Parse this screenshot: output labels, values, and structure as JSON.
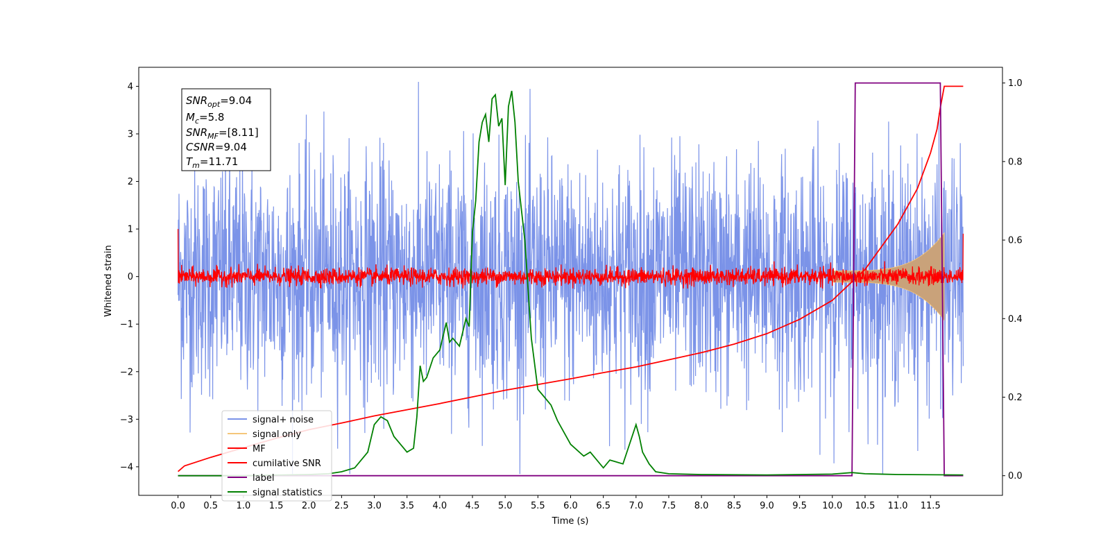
{
  "chart_data": {
    "type": "line",
    "xlabel": "Time (s)",
    "ylabel": "Whitened strain",
    "xlim": [
      -0.6,
      12.6
    ],
    "ylim": [
      -4.6,
      4.4
    ],
    "y2lim": [
      -0.05,
      1.04
    ],
    "xticks": [
      "0.0",
      "0.5",
      "1.0",
      "1.5",
      "2.0",
      "2.5",
      "3.0",
      "3.5",
      "4.0",
      "4.5",
      "5.0",
      "5.5",
      "6.0",
      "6.5",
      "7.0",
      "7.5",
      "8.0",
      "8.5",
      "9.0",
      "9.5",
      "10.0",
      "10.5",
      "11.0",
      "11.5"
    ],
    "yticks": [
      "−4",
      "−3",
      "−2",
      "−1",
      "0",
      "1",
      "2",
      "3",
      "4"
    ],
    "y2ticks": [
      "0.0",
      "0.2",
      "0.4",
      "0.6",
      "0.8",
      "1.0"
    ],
    "colors": {
      "signal_noise": "#7b93e8",
      "signal_only": "#f5c67a",
      "signal_fill": "#c9a27a",
      "mf": "#ff0000",
      "cumulative": "#ff0000",
      "label": "#800080",
      "statistics": "#008000"
    },
    "legend": {
      "placement": "lower-left",
      "entries": [
        "signal+ noise",
        "signal only",
        "MF",
        "cumilative SNR",
        "label",
        "signal statistics"
      ]
    },
    "info_box": {
      "snr_opt": "9.04",
      "mc": "5.8",
      "snr_mf": "[8.11]",
      "csnr": "9.04",
      "tm": "11.71"
    },
    "series": [
      {
        "name": "cumilative SNR",
        "axis": "left",
        "x": [
          0.0,
          0.1,
          0.5,
          1.0,
          1.5,
          2.0,
          2.5,
          3.0,
          3.5,
          4.0,
          4.5,
          5.0,
          5.5,
          6.0,
          6.5,
          7.0,
          7.5,
          8.0,
          8.5,
          9.0,
          9.5,
          10.0,
          10.5,
          11.0,
          11.3,
          11.5,
          11.6,
          11.65,
          11.71,
          12.0
        ],
        "y": [
          -4.1,
          -3.98,
          -3.8,
          -3.6,
          -3.4,
          -3.22,
          -3.08,
          -2.93,
          -2.8,
          -2.67,
          -2.53,
          -2.39,
          -2.27,
          -2.15,
          -2.02,
          -1.9,
          -1.75,
          -1.6,
          -1.42,
          -1.2,
          -0.9,
          -0.5,
          0.15,
          1.1,
          1.85,
          2.6,
          3.1,
          3.55,
          4.0,
          4.0
        ]
      },
      {
        "name": "label",
        "axis": "right",
        "x": [
          0.0,
          10.3,
          10.35,
          11.65,
          11.71,
          12.0
        ],
        "y": [
          0.0,
          0.0,
          1.0,
          1.0,
          0.0,
          0.0
        ]
      },
      {
        "name": "signal statistics",
        "axis": "right",
        "x": [
          0.0,
          1.0,
          2.0,
          2.3,
          2.5,
          2.7,
          2.9,
          3.0,
          3.1,
          3.2,
          3.3,
          3.5,
          3.6,
          3.65,
          3.7,
          3.75,
          3.8,
          3.9,
          4.0,
          4.1,
          4.15,
          4.2,
          4.3,
          4.4,
          4.45,
          4.5,
          4.55,
          4.6,
          4.65,
          4.7,
          4.75,
          4.8,
          4.85,
          4.9,
          4.95,
          5.0,
          5.05,
          5.1,
          5.15,
          5.2,
          5.3,
          5.4,
          5.5,
          5.6,
          5.7,
          5.8,
          6.0,
          6.2,
          6.3,
          6.5,
          6.6,
          6.8,
          6.9,
          7.0,
          7.05,
          7.1,
          7.2,
          7.3,
          7.5,
          8.0,
          9.0,
          10.0,
          10.3,
          10.5,
          11.0,
          12.0
        ],
        "y": [
          0.0,
          0.0,
          0.003,
          0.005,
          0.01,
          0.02,
          0.06,
          0.13,
          0.15,
          0.14,
          0.1,
          0.06,
          0.07,
          0.15,
          0.28,
          0.24,
          0.25,
          0.3,
          0.32,
          0.39,
          0.34,
          0.35,
          0.33,
          0.4,
          0.38,
          0.62,
          0.7,
          0.85,
          0.9,
          0.92,
          0.85,
          0.96,
          0.97,
          0.89,
          0.91,
          0.74,
          0.94,
          0.98,
          0.9,
          0.75,
          0.6,
          0.35,
          0.22,
          0.2,
          0.18,
          0.14,
          0.08,
          0.05,
          0.06,
          0.02,
          0.04,
          0.03,
          0.08,
          0.13,
          0.1,
          0.06,
          0.03,
          0.01,
          0.005,
          0.003,
          0.002,
          0.004,
          0.008,
          0.005,
          0.003,
          0.002
        ]
      }
    ]
  }
}
